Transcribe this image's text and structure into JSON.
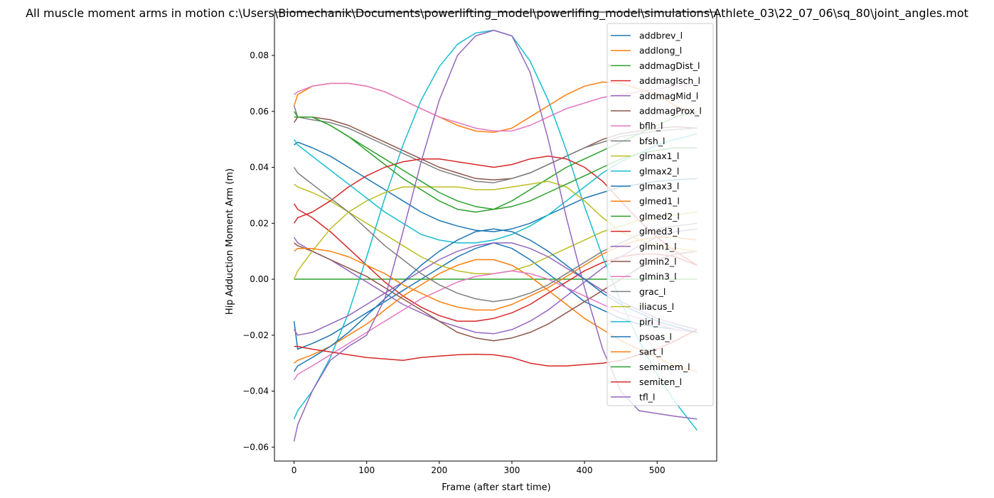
{
  "chart_data": {
    "type": "line",
    "title": "All muscle moment arms in motion c:\\Users\\Biomechanik\\Documents\\powerlifting_model\\powerlifing_model\\simulations\\Athlete_03\\22_07_06\\sq_80\\joint_angles.mot",
    "xlabel": "Frame (after start time)",
    "ylabel": "Hip Adduction Moment Arm (m)",
    "xlim": [
      -27,
      582
    ],
    "ylim": [
      -0.065,
      0.0955
    ],
    "x_ticks": [
      0,
      100,
      200,
      300,
      400,
      500
    ],
    "y_ticks": [
      -0.06,
      -0.04,
      -0.02,
      0.0,
      0.02,
      0.04,
      0.06,
      0.08
    ],
    "x_tick_labels": [
      "0",
      "100",
      "200",
      "300",
      "400",
      "500"
    ],
    "y_tick_labels": [
      "−0.06",
      "−0.04",
      "−0.02",
      "0.00",
      "0.02",
      "0.04",
      "0.06",
      "0.08"
    ],
    "grid": false,
    "legend_position": "top-right",
    "x": [
      0,
      5,
      25,
      50,
      75,
      100,
      125,
      150,
      175,
      200,
      225,
      250,
      275,
      300,
      325,
      350,
      375,
      400,
      425,
      450,
      475,
      500,
      525,
      555
    ],
    "series": [
      {
        "name": "addbrev_l",
        "color": "#1f77b4",
        "values": [
          -0.015,
          -0.025,
          -0.023,
          -0.02,
          -0.016,
          -0.012,
          -0.008,
          -0.004,
          0.0,
          0.004,
          0.008,
          0.011,
          0.013,
          0.011,
          0.007,
          0.002,
          -0.003,
          -0.008,
          -0.011,
          -0.014,
          -0.016,
          -0.017,
          -0.018,
          -0.019
        ]
      },
      {
        "name": "addlong_l",
        "color": "#ff7f0e",
        "values": [
          0.062,
          0.066,
          0.069,
          0.07,
          0.07,
          0.069,
          0.067,
          0.064,
          0.061,
          0.058,
          0.055,
          0.053,
          0.0525,
          0.054,
          0.058,
          0.062,
          0.066,
          0.069,
          0.0705,
          0.07,
          0.068,
          0.066,
          0.062,
          0.059
        ]
      },
      {
        "name": "addmagDist_l",
        "color": "#2ca02c",
        "values": [
          0.0,
          0.0,
          0.0,
          0.0,
          0.0,
          0.0,
          0.0,
          0.0,
          0.0,
          0.0,
          0.0,
          0.0,
          0.0,
          0.0,
          0.0,
          0.0,
          0.0,
          0.0,
          0.0,
          0.0,
          0.0,
          0.0,
          0.0,
          0.0
        ]
      },
      {
        "name": "addmagIsch_l",
        "color": "#d62728",
        "values": [
          0.027,
          0.025,
          0.022,
          0.017,
          0.011,
          0.005,
          -0.001,
          -0.006,
          -0.01,
          -0.013,
          -0.015,
          -0.015,
          -0.014,
          -0.012,
          -0.009,
          -0.005,
          -0.001,
          0.003,
          0.006,
          0.008,
          0.009,
          0.009,
          0.008,
          0.005
        ]
      },
      {
        "name": "addmagMid_l",
        "color": "#9467bd",
        "values": [
          0.015,
          0.013,
          0.01,
          0.007,
          0.003,
          -0.001,
          -0.005,
          -0.009,
          -0.012,
          -0.015,
          -0.017,
          -0.019,
          -0.0195,
          -0.018,
          -0.015,
          -0.011,
          -0.006,
          -0.001,
          0.004,
          0.008,
          0.012,
          0.015,
          0.017,
          0.018
        ]
      },
      {
        "name": "addmagProx_l",
        "color": "#8c564b",
        "values": [
          0.056,
          0.058,
          0.058,
          0.057,
          0.055,
          0.052,
          0.049,
          0.046,
          0.043,
          0.04,
          0.038,
          0.036,
          0.0355,
          0.036,
          0.038,
          0.041,
          0.044,
          0.047,
          0.05,
          0.052,
          0.053,
          0.054,
          0.0545,
          0.054
        ]
      },
      {
        "name": "bflh_l",
        "color": "#e377c2",
        "values": [
          0.066,
          0.067,
          0.069,
          0.07,
          0.07,
          0.069,
          0.067,
          0.064,
          0.061,
          0.058,
          0.056,
          0.054,
          0.053,
          0.053,
          0.055,
          0.058,
          0.061,
          0.063,
          0.065,
          0.066,
          0.067,
          0.068,
          0.069,
          0.07
        ]
      },
      {
        "name": "bfsh_l",
        "color": "#7f7f7f",
        "values": [
          0.062,
          0.058,
          0.057,
          0.056,
          0.054,
          0.051,
          0.048,
          0.045,
          0.042,
          0.039,
          0.037,
          0.035,
          0.0345,
          0.036,
          0.038,
          0.041,
          0.044,
          0.047,
          0.049,
          0.051,
          0.052,
          0.053,
          0.0535,
          0.054
        ]
      },
      {
        "name": "glmax1_l",
        "color": "#bcbd22",
        "values": [
          0.034,
          0.033,
          0.031,
          0.028,
          0.024,
          0.02,
          0.016,
          0.012,
          0.008,
          0.005,
          0.003,
          0.002,
          0.002,
          0.003,
          0.005,
          0.008,
          0.011,
          0.014,
          0.017,
          0.019,
          0.021,
          0.022,
          0.023,
          0.024
        ]
      },
      {
        "name": "glmax2_l",
        "color": "#17becf",
        "values": [
          -0.05,
          -0.047,
          -0.04,
          -0.028,
          -0.012,
          0.008,
          0.029,
          0.048,
          0.064,
          0.076,
          0.084,
          0.088,
          0.089,
          0.087,
          0.078,
          0.064,
          0.046,
          0.026,
          0.008,
          -0.008,
          -0.022,
          -0.034,
          -0.044,
          -0.054
        ]
      },
      {
        "name": "glmax3_l",
        "color": "#1f77b4",
        "values": [
          0.048,
          0.049,
          0.047,
          0.044,
          0.04,
          0.036,
          0.032,
          0.028,
          0.024,
          0.021,
          0.019,
          0.0175,
          0.017,
          0.018,
          0.02,
          0.023,
          0.026,
          0.029,
          0.031,
          0.033,
          0.034,
          0.035,
          0.0355,
          0.036
        ]
      },
      {
        "name": "glmed1_l",
        "color": "#ff7f0e",
        "values": [
          -0.03,
          -0.029,
          -0.027,
          -0.024,
          -0.02,
          -0.016,
          -0.011,
          -0.006,
          -0.002,
          0.002,
          0.005,
          0.007,
          0.007,
          0.005,
          0.001,
          -0.004,
          -0.009,
          -0.014,
          -0.018,
          -0.022,
          -0.025,
          -0.028,
          -0.031,
          -0.033
        ]
      },
      {
        "name": "glmed2_l",
        "color": "#2ca02c",
        "values": [
          0.06,
          0.058,
          0.058,
          0.055,
          0.051,
          0.046,
          0.041,
          0.036,
          0.032,
          0.028,
          0.025,
          0.024,
          0.025,
          0.028,
          0.032,
          0.036,
          0.04,
          0.043,
          0.046,
          0.049,
          0.052,
          0.055,
          0.058,
          0.06
        ]
      },
      {
        "name": "glmed3_l",
        "color": "#d62728",
        "values": [
          0.02,
          0.022,
          0.024,
          0.028,
          0.033,
          0.037,
          0.04,
          0.042,
          0.043,
          0.043,
          0.042,
          0.041,
          0.04,
          0.041,
          0.043,
          0.044,
          0.043,
          0.04,
          0.035,
          0.028,
          0.021,
          0.015,
          0.01,
          0.005
        ]
      },
      {
        "name": "glmin1_l",
        "color": "#9467bd",
        "values": [
          -0.018,
          -0.02,
          -0.019,
          -0.016,
          -0.013,
          -0.009,
          -0.005,
          -0.001,
          0.003,
          0.007,
          0.01,
          0.012,
          0.013,
          0.013,
          0.011,
          0.008,
          0.004,
          0.0,
          -0.004,
          -0.008,
          -0.011,
          -0.014,
          -0.016,
          -0.018
        ]
      },
      {
        "name": "glmin2_l",
        "color": "#8c564b",
        "values": [
          0.013,
          0.012,
          0.01,
          0.007,
          0.004,
          0.001,
          -0.003,
          -0.007,
          -0.011,
          -0.015,
          -0.019,
          -0.021,
          -0.022,
          -0.021,
          -0.019,
          -0.016,
          -0.012,
          -0.008,
          -0.004,
          0.0,
          0.004,
          0.007,
          0.009,
          0.01
        ]
      },
      {
        "name": "glmin3_l",
        "color": "#e377c2",
        "values": [
          -0.036,
          -0.034,
          -0.031,
          -0.027,
          -0.023,
          -0.019,
          -0.015,
          -0.011,
          -0.007,
          -0.004,
          -0.001,
          0.001,
          0.002,
          0.003,
          0.002,
          0.0,
          -0.003,
          -0.006,
          -0.009,
          -0.012,
          -0.014,
          -0.016,
          -0.018,
          -0.019
        ]
      },
      {
        "name": "grac_l",
        "color": "#7f7f7f",
        "values": [
          0.04,
          0.038,
          0.034,
          0.029,
          0.024,
          0.018,
          0.012,
          0.007,
          0.002,
          -0.002,
          -0.005,
          -0.007,
          -0.008,
          -0.007,
          -0.005,
          -0.002,
          0.002,
          0.006,
          0.01,
          0.013,
          0.016,
          0.018,
          0.019,
          0.02
        ]
      },
      {
        "name": "iliacus_l",
        "color": "#bcbd22",
        "values": [
          0.0,
          0.003,
          0.01,
          0.018,
          0.024,
          0.028,
          0.031,
          0.033,
          0.033,
          0.033,
          0.033,
          0.032,
          0.032,
          0.033,
          0.034,
          0.035,
          0.033,
          0.028,
          0.022,
          0.017,
          0.014,
          0.012,
          0.011,
          0.01
        ]
      },
      {
        "name": "piri_l",
        "color": "#17becf",
        "values": [
          0.05,
          0.048,
          0.044,
          0.039,
          0.034,
          0.029,
          0.024,
          0.02,
          0.016,
          0.014,
          0.013,
          0.013,
          0.014,
          0.016,
          0.019,
          0.023,
          0.028,
          0.033,
          0.038,
          0.042,
          0.045,
          0.048,
          0.05,
          0.052
        ]
      },
      {
        "name": "psoas_l",
        "color": "#1f77b4",
        "values": [
          -0.033,
          -0.031,
          -0.028,
          -0.024,
          -0.019,
          -0.013,
          -0.007,
          -0.001,
          0.005,
          0.01,
          0.014,
          0.017,
          0.018,
          0.017,
          0.014,
          0.01,
          0.005,
          0.0,
          -0.005,
          -0.009,
          -0.012,
          -0.015,
          -0.017,
          -0.019
        ]
      },
      {
        "name": "sart_l",
        "color": "#ff7f0e",
        "values": [
          0.01,
          0.011,
          0.011,
          0.01,
          0.008,
          0.005,
          0.002,
          -0.002,
          -0.005,
          -0.008,
          -0.01,
          -0.011,
          -0.011,
          -0.009,
          -0.006,
          -0.003,
          0.001,
          0.005,
          0.009,
          0.012,
          0.014,
          0.015,
          0.015,
          0.014
        ]
      },
      {
        "name": "semimem_l",
        "color": "#2ca02c",
        "values": [
          0.058,
          0.058,
          0.058,
          0.055,
          0.051,
          0.047,
          0.043,
          0.039,
          0.035,
          0.031,
          0.028,
          0.026,
          0.025,
          0.026,
          0.028,
          0.031,
          0.034,
          0.037,
          0.04,
          0.043,
          0.045,
          0.046,
          0.047,
          0.047
        ]
      },
      {
        "name": "semiten_l",
        "color": "#d62728",
        "values": [
          -0.024,
          -0.024,
          -0.025,
          -0.026,
          -0.027,
          -0.028,
          -0.0285,
          -0.029,
          -0.028,
          -0.0275,
          -0.027,
          -0.0268,
          -0.027,
          -0.028,
          -0.03,
          -0.031,
          -0.031,
          -0.0305,
          -0.03,
          -0.029,
          -0.027,
          -0.025,
          -0.022,
          -0.018
        ]
      },
      {
        "name": "tfl_l",
        "color": "#9467bd",
        "values": [
          -0.058,
          -0.052,
          -0.04,
          -0.029,
          -0.024,
          -0.02,
          -0.007,
          0.017,
          0.042,
          0.064,
          0.08,
          0.087,
          0.089,
          0.087,
          0.074,
          0.05,
          0.022,
          -0.003,
          -0.025,
          -0.04,
          -0.047,
          -0.048,
          -0.049,
          -0.05
        ]
      }
    ]
  }
}
